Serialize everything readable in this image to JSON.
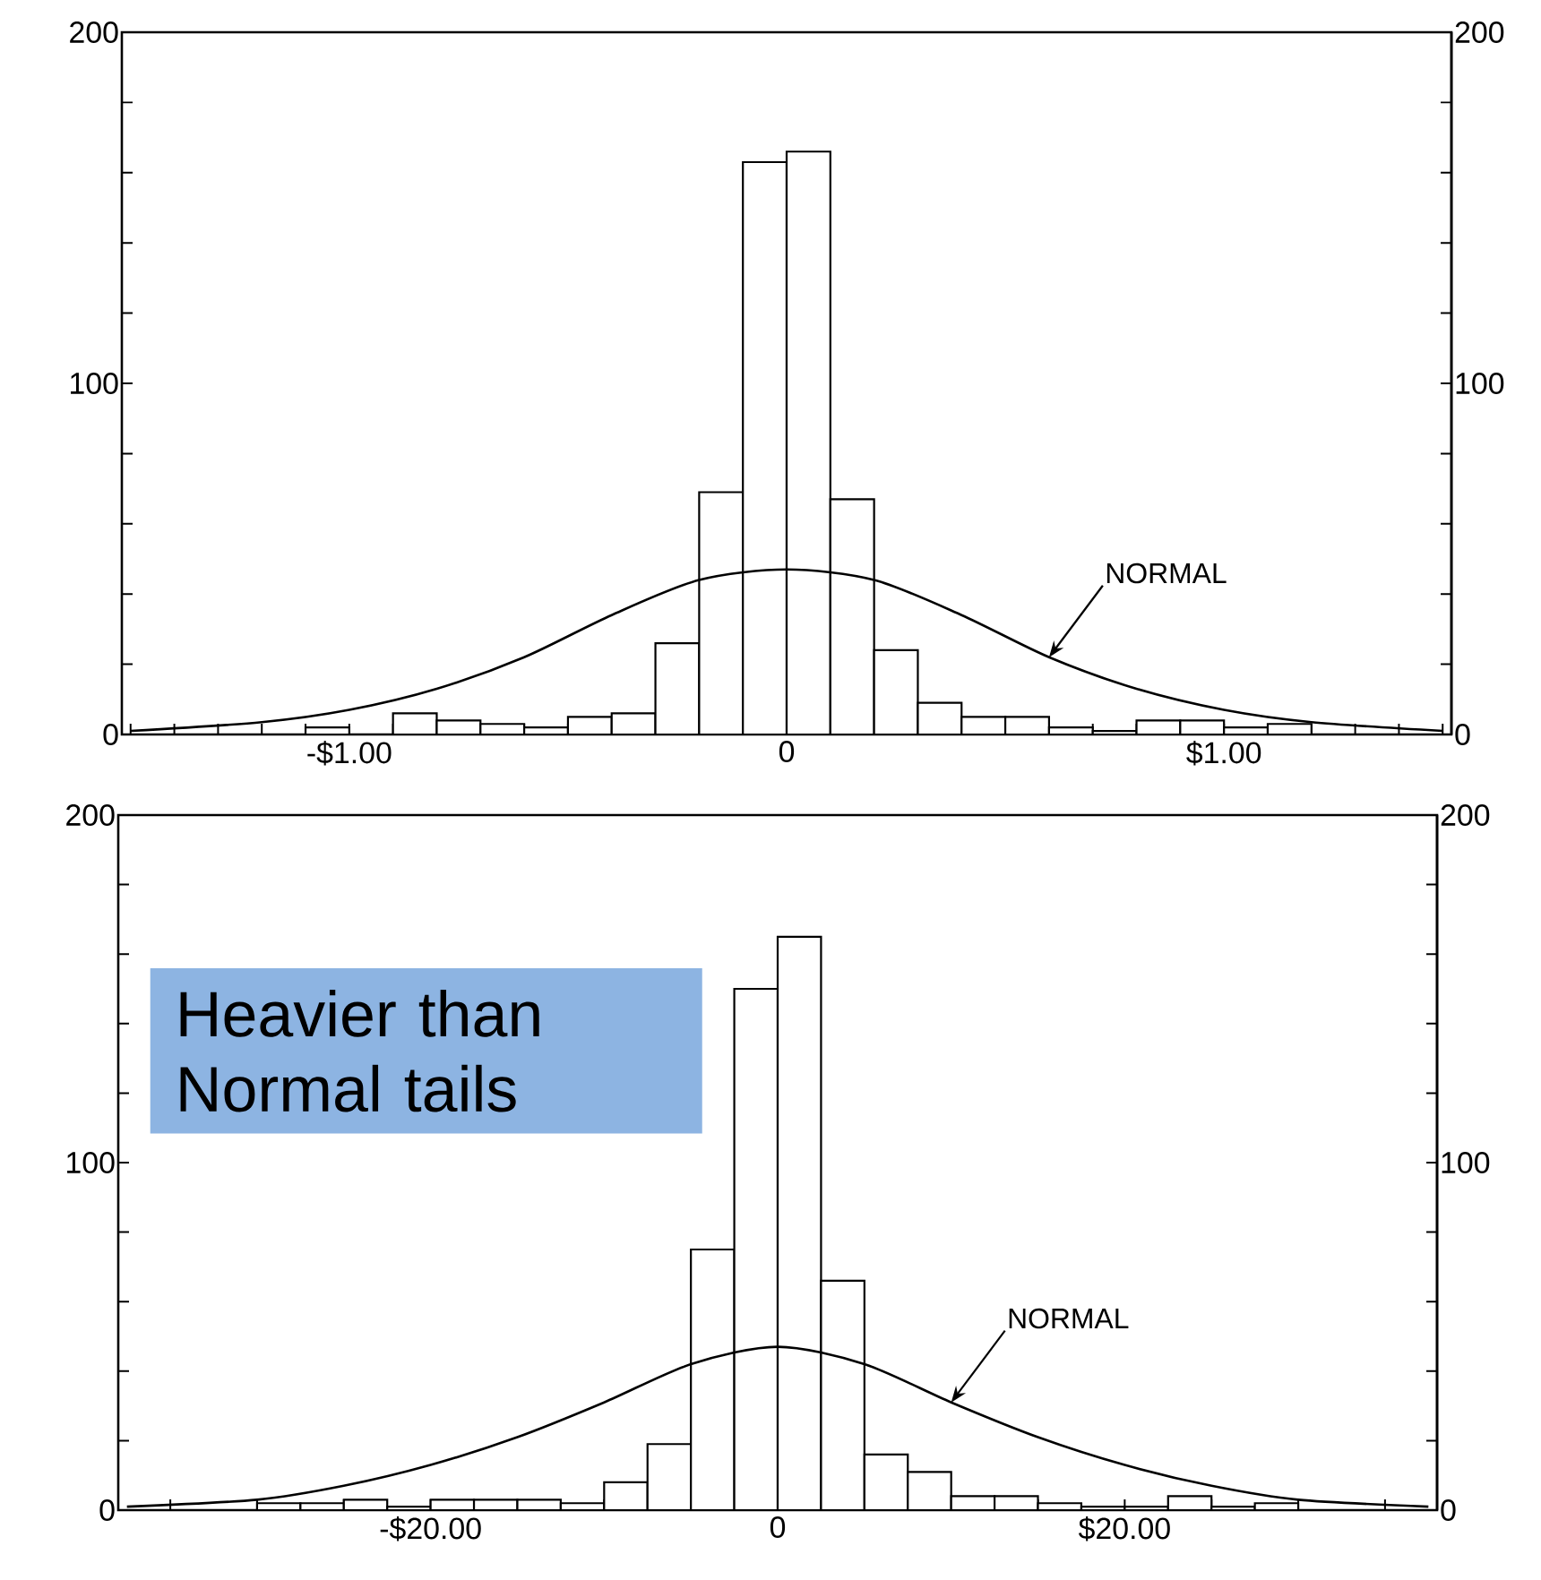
{
  "chart_data": [
    {
      "type": "histogram",
      "xlim": [
        -1.52,
        1.52
      ],
      "ylim": [
        0,
        200
      ],
      "y2lim": [
        0,
        200
      ],
      "xticks": [
        {
          "value": -1.5,
          "label": null
        },
        {
          "value": -1.4,
          "label": null
        },
        {
          "value": -1.3,
          "label": null
        },
        {
          "value": -1.2,
          "label": null
        },
        {
          "value": -1.1,
          "label": null
        },
        {
          "value": -1.0,
          "label": "-$1.00"
        },
        {
          "value": -0.9,
          "label": null
        },
        {
          "value": -0.8,
          "label": null
        },
        {
          "value": -0.7,
          "label": null
        },
        {
          "value": -0.6,
          "label": null
        },
        {
          "value": -0.5,
          "label": null
        },
        {
          "value": -0.4,
          "label": null
        },
        {
          "value": -0.3,
          "label": null
        },
        {
          "value": -0.2,
          "label": null
        },
        {
          "value": -0.1,
          "label": null
        },
        {
          "value": 0,
          "label": "0"
        },
        {
          "value": 0.1,
          "label": null
        },
        {
          "value": 0.2,
          "label": null
        },
        {
          "value": 0.3,
          "label": null
        },
        {
          "value": 0.4,
          "label": null
        },
        {
          "value": 0.5,
          "label": null
        },
        {
          "value": 0.6,
          "label": null
        },
        {
          "value": 0.7,
          "label": null
        },
        {
          "value": 0.8,
          "label": null
        },
        {
          "value": 0.9,
          "label": null
        },
        {
          "value": 1.0,
          "label": "$1.00"
        },
        {
          "value": 1.1,
          "label": null
        },
        {
          "value": 1.2,
          "label": null
        },
        {
          "value": 1.3,
          "label": null
        },
        {
          "value": 1.4,
          "label": null
        },
        {
          "value": 1.5,
          "label": null
        }
      ],
      "yticks": [
        0,
        {
          "value": 20,
          "label": null
        },
        {
          "value": 40,
          "label": null
        },
        {
          "value": 60,
          "label": null
        },
        {
          "value": 80,
          "label": null
        },
        100,
        {
          "value": 120,
          "label": null
        },
        {
          "value": 140,
          "label": null
        },
        {
          "value": 160,
          "label": null
        },
        {
          "value": 180,
          "label": null
        },
        200
      ],
      "y2ticks": [
        0,
        {
          "value": 20,
          "label": null
        },
        {
          "value": 40,
          "label": null
        },
        {
          "value": 60,
          "label": null
        },
        {
          "value": 80,
          "label": null
        },
        100,
        {
          "value": 120,
          "label": null
        },
        {
          "value": 140,
          "label": null
        },
        {
          "value": 160,
          "label": null
        },
        {
          "value": 180,
          "label": null
        },
        200
      ],
      "series": [
        {
          "color": "#000000",
          "bins": [
            -1.5,
            -1.4,
            -1.3,
            -1.2,
            -1.1,
            -1.0,
            -0.9,
            -0.8,
            -0.7,
            -0.6,
            -0.5,
            -0.4,
            -0.3,
            -0.2,
            -0.1,
            0,
            0.1,
            0.2,
            0.3,
            0.4,
            0.5,
            0.6,
            0.7,
            0.8,
            0.9,
            1.0,
            1.1,
            1.2,
            1.3,
            1.4,
            1.5
          ],
          "values": [
            0,
            0,
            0,
            0,
            2,
            0,
            6,
            4,
            3,
            2,
            5,
            6,
            26,
            69,
            163,
            166,
            67,
            24,
            9,
            5,
            5,
            2,
            1,
            4,
            4,
            2,
            3,
            0,
            0,
            0
          ]
        },
        {
          "type": "line",
          "color": "#000000",
          "x": [
            -1.5,
            -1.2,
            -1.0,
            -0.8,
            -0.6,
            -0.4,
            -0.2,
            0,
            0.2,
            0.4,
            0.6,
            0.8,
            1.0,
            1.2,
            1.5
          ],
          "values": [
            1,
            3.5,
            7,
            13,
            22,
            34,
            44,
            47,
            44,
            34,
            22,
            13,
            7,
            3.5,
            1
          ]
        }
      ],
      "annotations": [
        {
          "text": "NORMAL",
          "x": 0.6,
          "y": 22
        }
      ]
    },
    {
      "type": "histogram",
      "xlim": [
        -38,
        38
      ],
      "ylim": [
        0,
        200
      ],
      "y2lim": [
        0,
        200
      ],
      "xticks": [
        {
          "value": -35,
          "label": null
        },
        {
          "value": -30,
          "label": null
        },
        {
          "value": -25,
          "label": null
        },
        {
          "value": -20,
          "label": "-$20.00"
        },
        {
          "value": -15,
          "label": null
        },
        {
          "value": -10,
          "label": null
        },
        {
          "value": -5,
          "label": null
        },
        {
          "value": 0,
          "label": "0"
        },
        {
          "value": 5,
          "label": null
        },
        {
          "value": 10,
          "label": null
        },
        {
          "value": 15,
          "label": null
        },
        {
          "value": 20,
          "label": "$20.00"
        },
        {
          "value": 25,
          "label": null
        },
        {
          "value": 30,
          "label": null
        },
        {
          "value": 35,
          "label": null
        }
      ],
      "yticks": [
        0,
        {
          "value": 20,
          "label": null
        },
        {
          "value": 40,
          "label": null
        },
        {
          "value": 60,
          "label": null
        },
        {
          "value": 80,
          "label": null
        },
        100,
        {
          "value": 120,
          "label": null
        },
        {
          "value": 140,
          "label": null
        },
        {
          "value": 160,
          "label": null
        },
        {
          "value": 180,
          "label": null
        },
        200
      ],
      "y2ticks": [
        0,
        {
          "value": 20,
          "label": null
        },
        {
          "value": 40,
          "label": null
        },
        {
          "value": 60,
          "label": null
        },
        {
          "value": 80,
          "label": null
        },
        100,
        {
          "value": 120,
          "label": null
        },
        {
          "value": 140,
          "label": null
        },
        {
          "value": 160,
          "label": null
        },
        {
          "value": 180,
          "label": null
        },
        200
      ],
      "series": [
        {
          "color": "#000000",
          "bins": [
            -37.5,
            -35,
            -32.5,
            -30,
            -27.5,
            -25,
            -22.5,
            -20,
            -17.5,
            -15,
            -12.5,
            -10,
            -7.5,
            -5,
            -2.5,
            0,
            2.5,
            5,
            7.5,
            10,
            12.5,
            15,
            17.5,
            20,
            22.5,
            25,
            27.5,
            30,
            32.5,
            35,
            37.5
          ],
          "values": [
            0,
            0,
            0,
            2,
            2,
            3,
            1,
            3,
            3,
            3,
            2,
            8,
            19,
            75,
            150,
            165,
            66,
            16,
            11,
            4,
            4,
            2,
            1,
            1,
            4,
            1,
            2,
            0,
            0,
            0
          ]
        },
        {
          "type": "line",
          "color": "#000000",
          "x": [
            -37.5,
            -30,
            -25,
            -20,
            -15,
            -10,
            -5,
            0,
            5,
            10,
            15,
            20,
            25,
            30,
            37.5
          ],
          "values": [
            1,
            3,
            7,
            13,
            21,
            31,
            42,
            47,
            42,
            31,
            21,
            13,
            7,
            3,
            1
          ]
        }
      ],
      "annotations": [
        {
          "text": "NORMAL",
          "x": 10,
          "y": 31
        },
        "Heavier than Normal tails"
      ]
    }
  ]
}
